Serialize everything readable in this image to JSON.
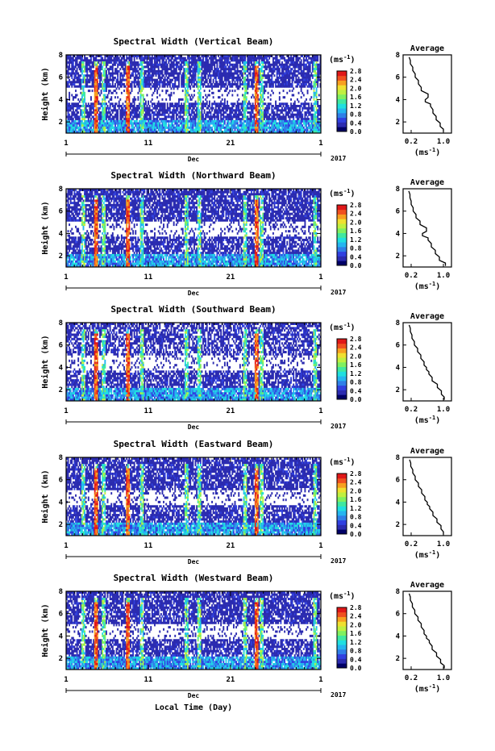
{
  "chart_data": {
    "type": "heatmap",
    "xlabel": "Local Time (Day)",
    "month_label": "Dec",
    "year_label": "2017",
    "x_ticks": [
      "1",
      "11",
      "21",
      "1"
    ],
    "ylabel": "Height (km)",
    "y_ticks": [
      "2",
      "4",
      "6",
      "8"
    ],
    "ylim": [
      1,
      8
    ],
    "colorbar": {
      "unit": "(ms",
      "unit_exp": "-1",
      "unit_close": ")",
      "range": [
        0.0,
        2.8
      ],
      "ticks": [
        "0.0",
        "0.4",
        "0.8",
        "1.2",
        "1.6",
        "2.0",
        "2.4",
        "2.8"
      ],
      "colors": [
        "#000066",
        "#2b2bb0",
        "#3040e0",
        "#2f7fe8",
        "#25b5f0",
        "#20dfe0",
        "#40e8a0",
        "#80f060",
        "#c0f040",
        "#f0e030",
        "#f8a020",
        "#f05020",
        "#e01818"
      ]
    },
    "avg_profile": {
      "title": "Average",
      "x_ticks": [
        "0.2",
        "1.0"
      ],
      "xlim": [
        0,
        1.2
      ],
      "x_unit": "(ms",
      "x_unit_exp": "-1",
      "x_unit_close": ")",
      "y_ticks": [
        "2",
        "4",
        "6",
        "8"
      ]
    },
    "panels": [
      {
        "title": "Spectral Width (Vertical Beam)",
        "avg_heights": [
          1.1,
          1.6,
          2.2,
          2.8,
          3.4,
          3.8,
          4.2,
          4.8,
          5.4,
          6.0,
          6.6,
          7.2,
          7.8
        ],
        "avg_values": [
          1.0,
          0.92,
          0.82,
          0.74,
          0.68,
          0.55,
          0.62,
          0.45,
          0.38,
          0.3,
          0.24,
          0.18,
          0.15
        ]
      },
      {
        "title": "Spectral Width (Northward Beam)",
        "avg_heights": [
          1.1,
          1.6,
          2.2,
          2.8,
          3.4,
          3.8,
          4.2,
          4.8,
          5.4,
          6.0,
          6.6,
          7.2,
          7.8
        ],
        "avg_values": [
          1.05,
          0.9,
          0.8,
          0.7,
          0.62,
          0.48,
          0.58,
          0.42,
          0.32,
          0.25,
          0.2,
          0.17,
          0.14
        ]
      },
      {
        "title": "Spectral Width (Southward Beam)",
        "avg_heights": [
          1.1,
          1.6,
          2.2,
          2.8,
          3.4,
          3.8,
          4.2,
          4.8,
          5.4,
          6.0,
          6.6,
          7.2,
          7.8
        ],
        "avg_values": [
          1.02,
          0.95,
          0.85,
          0.72,
          0.64,
          0.58,
          0.52,
          0.44,
          0.36,
          0.28,
          0.22,
          0.18,
          0.15
        ]
      },
      {
        "title": "Spectral Width (Eastward Beam)",
        "avg_heights": [
          1.1,
          1.6,
          2.2,
          2.8,
          3.4,
          3.8,
          4.2,
          4.8,
          5.4,
          6.0,
          6.6,
          7.2,
          7.8
        ],
        "avg_values": [
          1.0,
          0.94,
          0.84,
          0.74,
          0.66,
          0.6,
          0.54,
          0.46,
          0.38,
          0.3,
          0.24,
          0.19,
          0.16
        ]
      },
      {
        "title": "Spectral Width (Westward Beam)",
        "avg_heights": [
          1.1,
          1.6,
          2.2,
          2.8,
          3.4,
          3.8,
          4.2,
          4.8,
          5.4,
          6.0,
          6.6,
          7.2,
          7.8
        ],
        "avg_values": [
          1.02,
          0.93,
          0.83,
          0.72,
          0.65,
          0.58,
          0.52,
          0.45,
          0.37,
          0.29,
          0.23,
          0.18,
          0.15
        ]
      }
    ]
  }
}
